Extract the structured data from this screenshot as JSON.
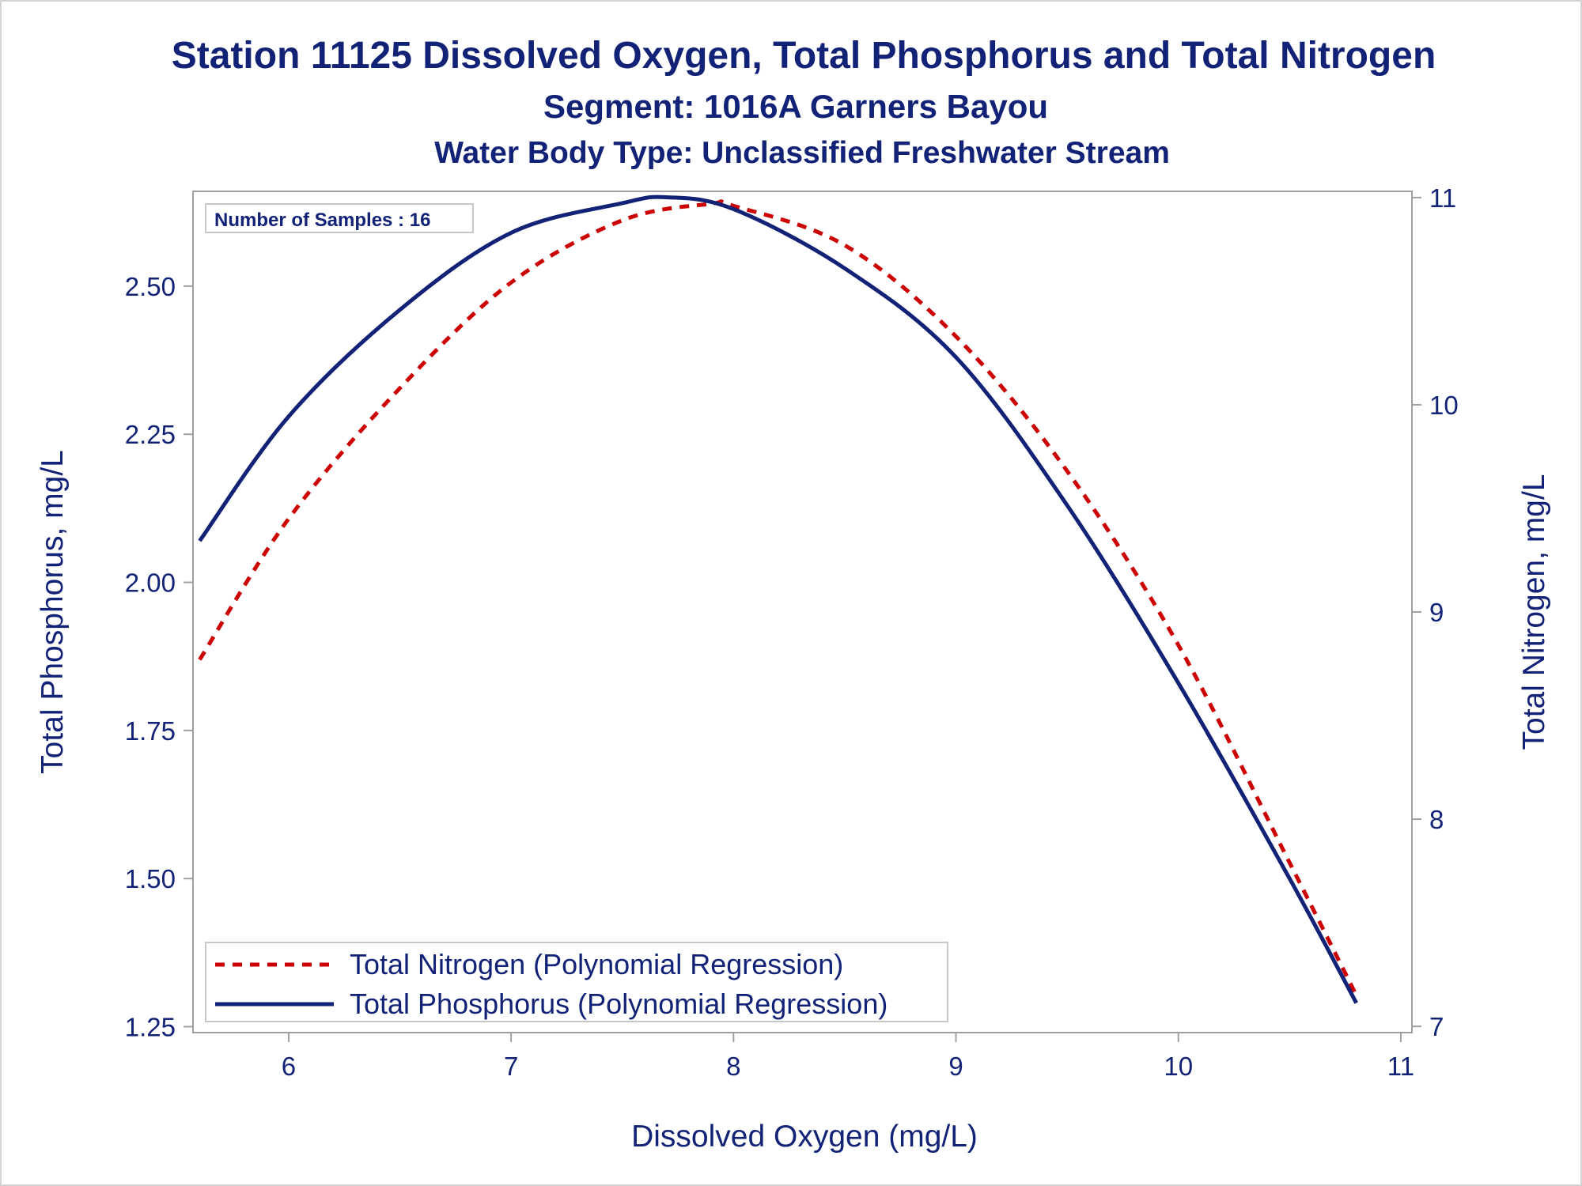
{
  "chart_data": {
    "type": "line",
    "title": "Station 11125  Dissolved Oxygen, Total Phosphorus and Total Nitrogen",
    "subtitle": "Segment: 1016A  Garners Bayou",
    "subtitle2": "Water Body Type: Unclassified Freshwater Stream",
    "xlabel": "Dissolved Oxygen (mg/L)",
    "ylabel": "Total Phosphorus, mg/L",
    "y2label": "Total Nitrogen, mg/L",
    "xlim": [
      5.57,
      11.05
    ],
    "ylim": [
      1.24,
      2.66
    ],
    "y2lim": [
      6.97,
      11.03
    ],
    "xticks": [
      "6",
      "7",
      "8",
      "9",
      "10",
      "11"
    ],
    "yticks": [
      "1.25",
      "1.50",
      "1.75",
      "2.00",
      "2.25",
      "2.50"
    ],
    "y2ticks": [
      "7",
      "8",
      "9",
      "10",
      "11"
    ],
    "inset": "Number of Samples : 16",
    "legend_position": "bottom-left",
    "grid": false,
    "series": [
      {
        "name": "Total Nitrogen (Polynomial Regression)",
        "axis": "right",
        "color": "#cc0000",
        "dash": "dashed",
        "x": [
          5.6,
          6.0,
          6.5,
          7.0,
          7.5,
          7.9,
          8.0,
          8.5,
          9.0,
          9.5,
          10.0,
          10.5,
          10.8
        ],
        "y": [
          8.77,
          9.45,
          10.08,
          10.59,
          10.89,
          10.97,
          10.96,
          10.77,
          10.33,
          9.68,
          8.84,
          7.79,
          7.15
        ]
      },
      {
        "name": "Total Phosphorus (Polynomial Regression)",
        "axis": "left",
        "color": "#112277",
        "dash": "solid",
        "x": [
          5.6,
          6.0,
          6.5,
          7.0,
          7.5,
          7.7,
          8.0,
          8.5,
          9.0,
          9.5,
          10.0,
          10.5,
          10.8
        ],
        "y": [
          2.07,
          2.28,
          2.46,
          2.59,
          2.64,
          2.65,
          2.63,
          2.53,
          2.38,
          2.13,
          1.83,
          1.5,
          1.29
        ]
      }
    ]
  }
}
